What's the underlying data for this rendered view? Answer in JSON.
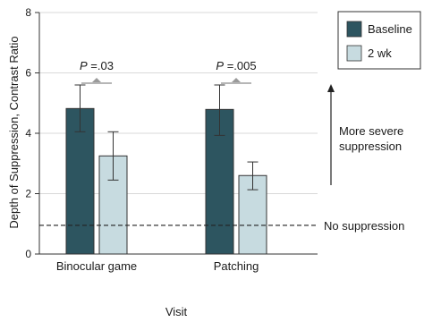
{
  "chart_data": {
    "type": "bar",
    "xlabel": "Visit",
    "ylabel": "Depth of Suppression, Contrast Ratio",
    "ylim": [
      0,
      8
    ],
    "yticks": [
      "0",
      "2",
      "4",
      "6",
      "8"
    ],
    "grid": true,
    "legend_position": "top-right",
    "categories": [
      "Binocular game",
      "Patching"
    ],
    "series": [
      {
        "name": "Baseline",
        "color": "#2d5560",
        "values": [
          4.82,
          4.79
        ],
        "err_low": [
          4.05,
          3.93
        ],
        "err_high": [
          5.6,
          5.6
        ]
      },
      {
        "name": "2 wk",
        "color": "#c7dbe0",
        "values": [
          3.25,
          2.6
        ],
        "err_low": [
          2.45,
          2.13
        ],
        "err_high": [
          4.05,
          3.05
        ]
      }
    ],
    "comparisons": [
      {
        "italic": "P",
        "rest": " =.03"
      },
      {
        "italic": "P",
        "rest": " =.005"
      }
    ],
    "reference_line": {
      "y": 0.95,
      "label": "No suppression"
    },
    "arrow_annotation": {
      "line1": "More severe",
      "line2": "suppression"
    }
  }
}
